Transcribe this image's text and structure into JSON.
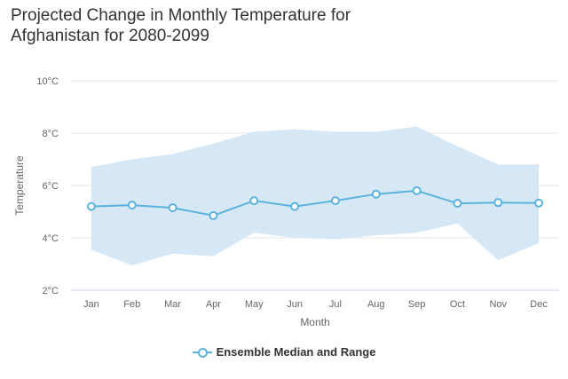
{
  "chart_data": {
    "type": "line",
    "title_lines": [
      "Projected Change in Monthly Temperature for",
      "Afghanistan for 2080-2099"
    ],
    "xlabel": "Month",
    "ylabel": "Temperature",
    "categories": [
      "Jan",
      "Feb",
      "Mar",
      "Apr",
      "May",
      "Jun",
      "Jul",
      "Aug",
      "Sep",
      "Oct",
      "Nov",
      "Dec"
    ],
    "y_ticks": [
      2,
      4,
      6,
      8,
      10
    ],
    "y_tick_labels": [
      "2°C",
      "4°C",
      "6°C",
      "8°C",
      "10°C"
    ],
    "ylim": [
      2,
      10
    ],
    "series": [
      {
        "name": "Ensemble Median and Range",
        "median": [
          5.2,
          5.25,
          5.15,
          4.85,
          5.42,
          5.2,
          5.42,
          5.67,
          5.8,
          5.32,
          5.35,
          5.33
        ],
        "range_low": [
          3.55,
          2.95,
          3.4,
          3.3,
          4.2,
          4.0,
          3.95,
          4.1,
          4.2,
          4.55,
          3.15,
          3.8
        ],
        "range_high": [
          6.7,
          7.0,
          7.2,
          7.6,
          8.05,
          8.15,
          8.05,
          8.05,
          8.25,
          7.5,
          6.8,
          6.8
        ]
      }
    ],
    "colors": {
      "line": "#5bb3dd",
      "band": "#d6e7f6",
      "grid": "#e6e6e6",
      "axis": "#ccd6eb"
    },
    "legend_position": "bottom-center",
    "grid": true
  }
}
